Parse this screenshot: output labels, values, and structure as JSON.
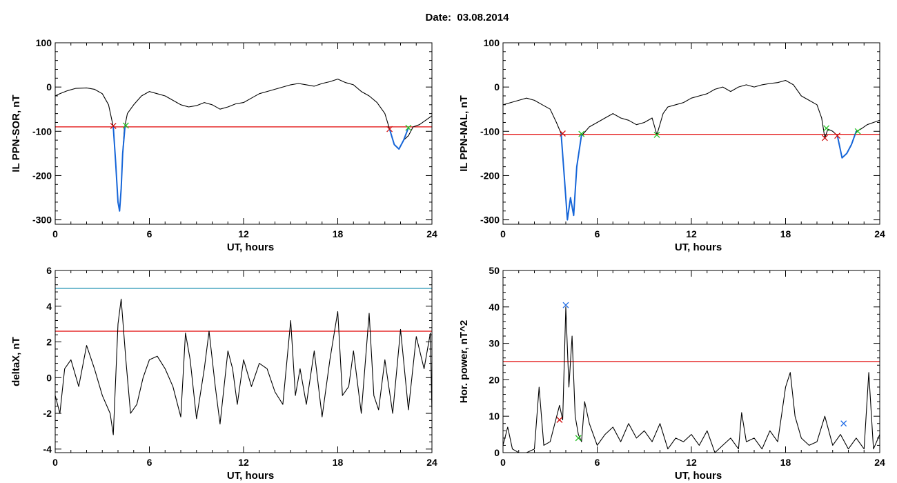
{
  "page": {
    "title": "Date:  03.08.2014"
  },
  "colors": {
    "axis": "#000000",
    "threshold": "#e00000",
    "cyan_line": "#1a8fb0",
    "highlight": "#1565d8",
    "start_marker": "#d01010",
    "end_marker": "#22c022",
    "peak_marker": "#1e6be6"
  },
  "chart_data": [
    {
      "id": "sor",
      "type": "line",
      "title": "",
      "xlabel": "UT, hours",
      "ylabel": "IL PPN-SOR, nT",
      "xlim": [
        0,
        24
      ],
      "ylim": [
        -310,
        100
      ],
      "xticks": [
        0,
        6,
        12,
        18,
        24
      ],
      "yticks": [
        -300,
        -200,
        -100,
        0,
        100
      ],
      "threshold": -90,
      "series": [
        {
          "role": "signal",
          "color": "#000000",
          "x": [
            0,
            0.3,
            0.8,
            1.3,
            2,
            2.5,
            3,
            3.4,
            3.7,
            3.85,
            4.0,
            4.1,
            4.2,
            4.3,
            4.4,
            4.6,
            5.0,
            5.5,
            6.0,
            6.5,
            7,
            7.5,
            8,
            8.5,
            9,
            9.5,
            10,
            10.5,
            11,
            11.5,
            12,
            12.5,
            13,
            13.5,
            14,
            14.5,
            15,
            15.5,
            16,
            16.5,
            17,
            17.5,
            18,
            18.5,
            19,
            19.5,
            20,
            20.5,
            21,
            21.3,
            21.6,
            21.9,
            22.2,
            22.5,
            22.8,
            23.2,
            23.6,
            24
          ],
          "y": [
            -20,
            -15,
            -8,
            -3,
            -2,
            -5,
            -15,
            -40,
            -90,
            -170,
            -260,
            -280,
            -230,
            -150,
            -95,
            -60,
            -40,
            -20,
            -10,
            -15,
            -20,
            -30,
            -40,
            -45,
            -42,
            -35,
            -40,
            -50,
            -45,
            -38,
            -35,
            -25,
            -15,
            -10,
            -5,
            0,
            5,
            8,
            5,
            2,
            8,
            12,
            18,
            10,
            5,
            -10,
            -20,
            -35,
            -60,
            -95,
            -130,
            -140,
            -120,
            -110,
            -90,
            -85,
            -75,
            -65
          ]
        }
      ],
      "highlights": [
        {
          "x": [
            3.7,
            3.85,
            4.0,
            4.1,
            4.2,
            4.3,
            4.45
          ],
          "y": [
            -90,
            -170,
            -260,
            -280,
            -230,
            -150,
            -88
          ]
        },
        {
          "x": [
            21.3,
            21.6,
            21.9,
            22.2,
            22.5
          ],
          "y": [
            -95,
            -130,
            -140,
            -120,
            -92
          ]
        }
      ],
      "markers": [
        {
          "x": 3.7,
          "y": -88,
          "kind": "start"
        },
        {
          "x": 4.5,
          "y": -87,
          "kind": "end"
        },
        {
          "x": 21.3,
          "y": -95,
          "kind": "start"
        },
        {
          "x": 22.5,
          "y": -92,
          "kind": "end"
        }
      ]
    },
    {
      "id": "nal",
      "type": "line",
      "title": "",
      "xlabel": "UT, hours",
      "ylabel": "IL PPN-NAL, nT",
      "xlim": [
        0,
        24
      ],
      "ylim": [
        -310,
        100
      ],
      "xticks": [
        0,
        6,
        12,
        18,
        24
      ],
      "yticks": [
        -300,
        -200,
        -100,
        0,
        100
      ],
      "threshold": -107,
      "series": [
        {
          "role": "signal",
          "color": "#000000",
          "x": [
            0,
            0.5,
            1,
            1.5,
            2,
            2.5,
            3,
            3.4,
            3.7,
            3.9,
            4.1,
            4.3,
            4.5,
            4.7,
            5.0,
            5.5,
            6.0,
            6.5,
            7,
            7.5,
            8,
            8.5,
            9,
            9.5,
            9.8,
            10.2,
            10.5,
            11,
            11.5,
            12,
            12.5,
            13,
            13.5,
            14,
            14.5,
            15,
            15.5,
            16,
            16.5,
            17,
            17.5,
            18,
            18.5,
            19,
            19.5,
            20,
            20.3,
            20.5,
            20.7,
            21,
            21.3,
            21.6,
            21.9,
            22.2,
            22.5,
            22.8,
            23.2,
            23.6,
            24
          ],
          "y": [
            -40,
            -35,
            -30,
            -25,
            -30,
            -40,
            -50,
            -80,
            -105,
            -200,
            -300,
            -250,
            -290,
            -180,
            -110,
            -90,
            -80,
            -70,
            -60,
            -70,
            -75,
            -85,
            -80,
            -70,
            -108,
            -60,
            -45,
            -40,
            -35,
            -25,
            -20,
            -15,
            -5,
            0,
            -10,
            0,
            5,
            0,
            5,
            8,
            10,
            15,
            5,
            -20,
            -30,
            -40,
            -70,
            -115,
            -95,
            -100,
            -110,
            -160,
            -150,
            -130,
            -100,
            -95,
            -85,
            -80,
            -75
          ]
        }
      ],
      "highlights": [
        {
          "x": [
            3.7,
            3.9,
            4.1,
            4.3,
            4.5,
            4.7,
            5.0
          ],
          "y": [
            -105,
            -200,
            -300,
            -250,
            -290,
            -180,
            -108
          ]
        },
        {
          "x": [
            21.3,
            21.6,
            21.9,
            22.2,
            22.5
          ],
          "y": [
            -110,
            -160,
            -150,
            -130,
            -100
          ]
        }
      ],
      "markers": [
        {
          "x": 3.8,
          "y": -105,
          "kind": "start"
        },
        {
          "x": 5.0,
          "y": -106,
          "kind": "end"
        },
        {
          "x": 9.8,
          "y": -108,
          "kind": "end"
        },
        {
          "x": 20.5,
          "y": -115,
          "kind": "start"
        },
        {
          "x": 20.6,
          "y": -93,
          "kind": "end"
        },
        {
          "x": 21.3,
          "y": -110,
          "kind": "start"
        },
        {
          "x": 22.6,
          "y": -100,
          "kind": "end"
        }
      ]
    },
    {
      "id": "deltax",
      "type": "line",
      "title": "",
      "xlabel": "UT, hours",
      "ylabel": "deltaX, nT",
      "xlim": [
        0,
        24
      ],
      "ylim": [
        -4.2,
        6
      ],
      "xticks": [
        0,
        6,
        12,
        18,
        24
      ],
      "yticks": [
        -4,
        -2,
        0,
        2,
        4,
        6
      ],
      "threshold": 2.6,
      "upper_line": 5.0,
      "series": [
        {
          "role": "signal",
          "color": "#000000",
          "x": [
            0,
            0.3,
            0.6,
            1.0,
            1.5,
            2.0,
            2.5,
            3.0,
            3.5,
            3.7,
            4.0,
            4.2,
            4.5,
            4.8,
            5.2,
            5.6,
            6.0,
            6.5,
            7.0,
            7.5,
            8.0,
            8.3,
            8.6,
            9.0,
            9.5,
            9.8,
            10.2,
            10.5,
            11.0,
            11.3,
            11.6,
            12.0,
            12.5,
            13.0,
            13.5,
            14.0,
            14.5,
            15.0,
            15.3,
            15.6,
            16.0,
            16.5,
            17.0,
            17.5,
            18.0,
            18.3,
            18.7,
            19.0,
            19.5,
            20.0,
            20.3,
            20.6,
            21.0,
            21.5,
            22.0,
            22.5,
            23.0,
            23.5,
            23.9,
            24
          ],
          "y": [
            -1,
            -2,
            0.5,
            1,
            -0.5,
            1.8,
            0.5,
            -1,
            -2,
            -3.2,
            3,
            4.4,
            1,
            -2,
            -1.5,
            0,
            1,
            1.2,
            0.5,
            -0.5,
            -2.2,
            2.5,
            1,
            -2.3,
            0.5,
            2.6,
            -0.5,
            -2.6,
            1.5,
            0.5,
            -1.5,
            1,
            -0.5,
            0.8,
            0.5,
            -0.8,
            -1.5,
            3.2,
            -1,
            0.5,
            -1.5,
            1.5,
            -2.2,
            1,
            3.7,
            -1,
            -0.5,
            1.5,
            -2,
            3.6,
            -1,
            -1.8,
            1,
            -2,
            2.7,
            -1.8,
            2.3,
            0.5,
            2.5,
            -2
          ]
        }
      ],
      "highlights": [],
      "markers": []
    },
    {
      "id": "hpower",
      "type": "line",
      "title": "",
      "xlabel": "UT, hours",
      "ylabel": "Hor. power, nT^2",
      "xlim": [
        0,
        24
      ],
      "ylim": [
        0,
        50
      ],
      "xticks": [
        0,
        6,
        12,
        18,
        24
      ],
      "yticks": [
        0,
        10,
        20,
        30,
        40,
        50
      ],
      "threshold": 25,
      "series": [
        {
          "role": "signal",
          "color": "#000000",
          "x": [
            0,
            0.3,
            0.6,
            1.0,
            1.5,
            2.0,
            2.3,
            2.6,
            3.0,
            3.3,
            3.6,
            3.8,
            4.0,
            4.2,
            4.4,
            4.6,
            4.8,
            5.0,
            5.2,
            5.5,
            6.0,
            6.5,
            7.0,
            7.5,
            8.0,
            8.5,
            9.0,
            9.5,
            10.0,
            10.5,
            11.0,
            11.5,
            12.0,
            12.5,
            13.0,
            13.5,
            14.0,
            14.5,
            15.0,
            15.2,
            15.5,
            16.0,
            16.5,
            17.0,
            17.5,
            17.8,
            18.0,
            18.3,
            18.6,
            19.0,
            19.5,
            20.0,
            20.5,
            21.0,
            21.5,
            22.0,
            22.5,
            23.0,
            23.3,
            23.6,
            24
          ],
          "y": [
            2,
            7,
            1,
            0,
            0,
            1,
            18,
            2,
            3,
            8,
            13,
            9,
            40,
            18,
            32,
            10,
            5,
            3,
            14,
            8,
            2,
            5,
            7,
            3,
            8,
            4,
            6,
            3,
            8,
            1,
            4,
            3,
            5,
            2,
            6,
            0,
            2,
            4,
            1,
            11,
            3,
            4,
            1,
            6,
            3,
            12,
            18,
            22,
            10,
            4,
            2,
            3,
            10,
            2,
            5,
            1,
            4,
            1,
            22,
            1,
            5
          ]
        }
      ],
      "highlights": [],
      "markers": [
        {
          "x": 3.6,
          "y": 9,
          "kind": "start"
        },
        {
          "x": 4.0,
          "y": 40.5,
          "kind": "peak"
        },
        {
          "x": 4.8,
          "y": 4,
          "kind": "end"
        },
        {
          "x": 21.7,
          "y": 8,
          "kind": "peak"
        }
      ]
    }
  ]
}
